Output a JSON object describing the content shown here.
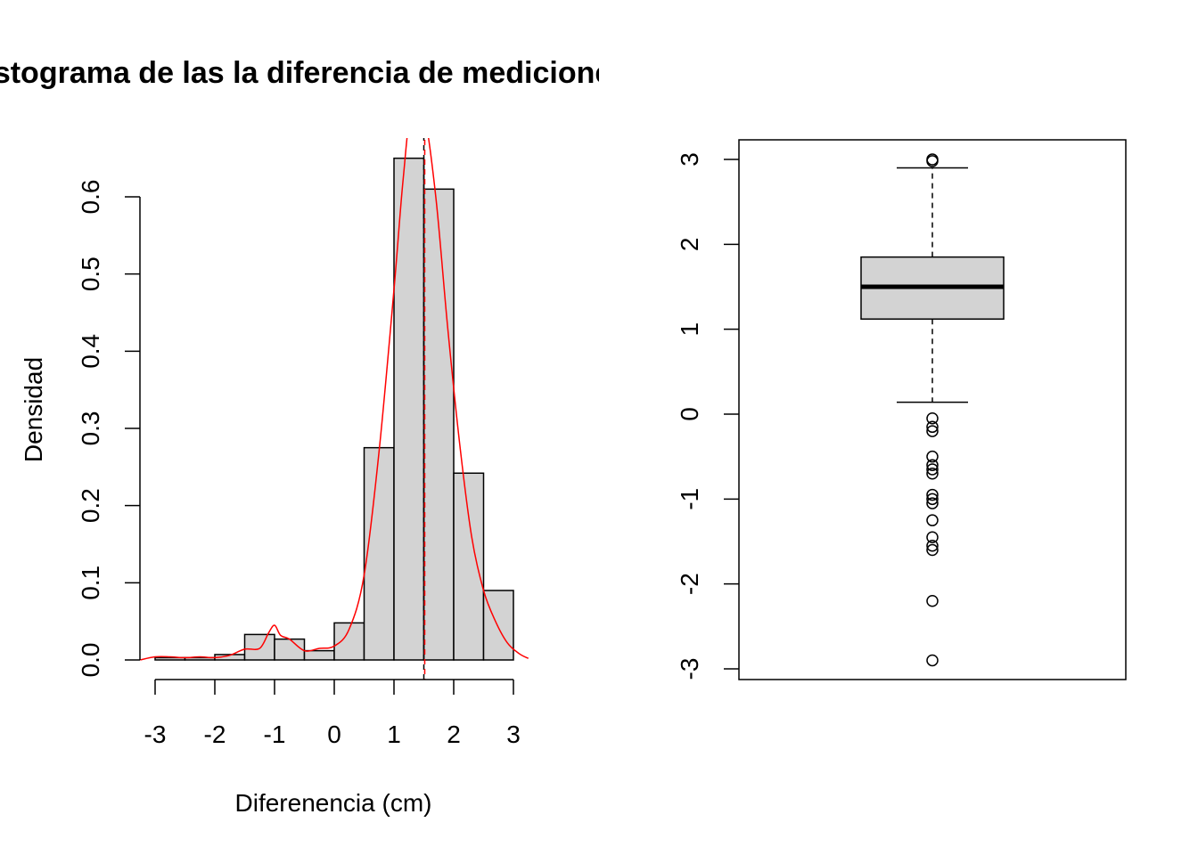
{
  "chart_data": [
    {
      "type": "histogram",
      "title": "Histograma de las la diferencia de mediciones",
      "xlabel": "Diferenencia (cm)",
      "ylabel": "Densidad",
      "xlim": [
        -3.25,
        3.25
      ],
      "ylim": [
        0,
        0.675
      ],
      "x_ticks": [
        "-3",
        "-2",
        "-1",
        "0",
        "1",
        "2",
        "3"
      ],
      "y_ticks": [
        "0.0",
        "0.1",
        "0.2",
        "0.3",
        "0.4",
        "0.5",
        "0.6"
      ],
      "bins": [
        {
          "start": -3.0,
          "end": -2.5,
          "density": 0.003
        },
        {
          "start": -2.5,
          "end": -2.0,
          "density": 0.003
        },
        {
          "start": -2.0,
          "end": -1.5,
          "density": 0.007
        },
        {
          "start": -1.5,
          "end": -1.0,
          "density": 0.033
        },
        {
          "start": -1.0,
          "end": -0.5,
          "density": 0.027
        },
        {
          "start": -0.5,
          "end": 0.0,
          "density": 0.012
        },
        {
          "start": 0.0,
          "end": 0.5,
          "density": 0.048
        },
        {
          "start": 0.5,
          "end": 1.0,
          "density": 0.275
        },
        {
          "start": 1.0,
          "end": 1.5,
          "density": 0.65
        },
        {
          "start": 1.5,
          "end": 2.0,
          "density": 0.61
        },
        {
          "start": 2.0,
          "end": 2.5,
          "density": 0.242
        },
        {
          "start": 2.5,
          "end": 3.0,
          "density": 0.09
        }
      ],
      "bar_fill": "#d3d3d3",
      "density_curve": {
        "color": "#ff0000",
        "x": [
          -3.25,
          -3.0,
          -2.75,
          -2.5,
          -2.25,
          -2.0,
          -1.75,
          -1.5,
          -1.25,
          -1.1,
          -1.0,
          -0.9,
          -0.75,
          -0.5,
          -0.25,
          0.0,
          0.25,
          0.5,
          0.75,
          1.0,
          1.15,
          1.3,
          1.5,
          1.7,
          1.9,
          2.1,
          2.3,
          2.5,
          2.7,
          2.9,
          3.1,
          3.25
        ],
        "y": [
          0.0,
          0.004,
          0.004,
          0.003,
          0.004,
          0.003,
          0.006,
          0.014,
          0.015,
          0.035,
          0.045,
          0.032,
          0.027,
          0.012,
          0.015,
          0.018,
          0.04,
          0.11,
          0.27,
          0.48,
          0.62,
          0.72,
          0.71,
          0.6,
          0.43,
          0.28,
          0.16,
          0.09,
          0.05,
          0.022,
          0.008,
          0.002
        ]
      },
      "median_line": {
        "x": 1.5,
        "color": "#ff0000"
      },
      "mean_line": {
        "x": 1.5,
        "color": "#000000"
      }
    },
    {
      "type": "boxplot",
      "ylim": [
        -3.15,
        3.2
      ],
      "y_ticks": [
        "-3",
        "-2",
        "-1",
        "0",
        "1",
        "2",
        "3"
      ],
      "whisker_low": 0.14,
      "q1": 1.12,
      "median": 1.5,
      "q3": 1.85,
      "whisker_high": 2.9,
      "outliers": [
        3.0,
        2.98,
        -0.05,
        -0.15,
        -0.2,
        -0.5,
        -0.6,
        -0.65,
        -0.7,
        -0.95,
        -1.0,
        -1.05,
        -1.25,
        -1.45,
        -1.55,
        -1.6,
        -2.2,
        -2.9
      ],
      "box_fill": "#d3d3d3"
    }
  ]
}
